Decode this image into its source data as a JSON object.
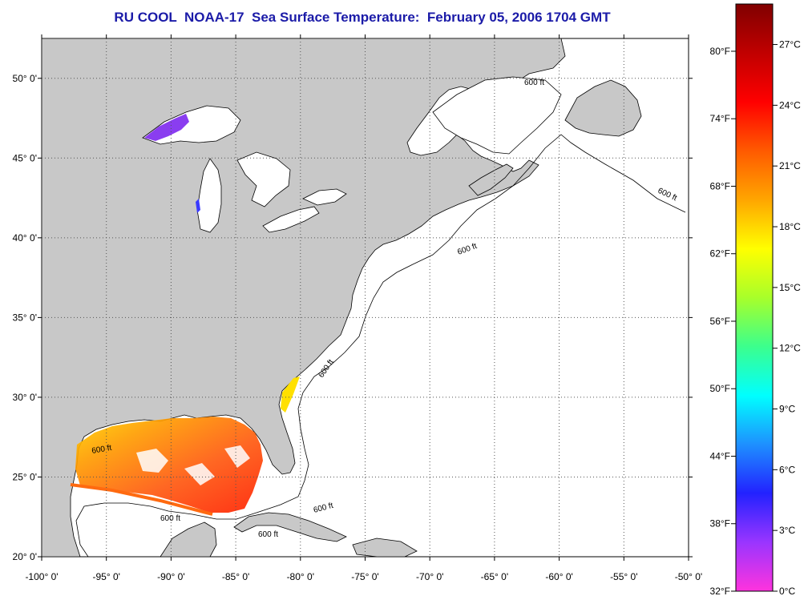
{
  "title": "RU COOL  NOAA-17  Sea Surface Temperature:  February 05, 2006 1704 GMT",
  "colors": {
    "land": "#c8c8c8",
    "ocean": "#ffffff",
    "title": "#1b1ba8",
    "coast": "#000000",
    "gridline": "#555555"
  },
  "map": {
    "lon_range": [
      -100,
      -50
    ],
    "lat_range": [
      20,
      52.5
    ],
    "lon_ticks": [
      "-100° 0'",
      "-95° 0'",
      "-90° 0'",
      "-85° 0'",
      "-80° 0'",
      "-75° 0'",
      "-70° 0'",
      "-65° 0'",
      "-60° 0'",
      "-55° 0'",
      "-50° 0'"
    ],
    "lat_ticks": [
      "20° 0'",
      "25° 0'",
      "30° 0'",
      "35° 0'",
      "40° 0'",
      "45° 0'",
      "50° 0'"
    ],
    "grid": true,
    "contour_label": "600 ft"
  },
  "colorbar": {
    "range_c": [
      0,
      29
    ],
    "fahrenheit_labels": [
      "80°F",
      "74°F",
      "68°F",
      "62°F",
      "56°F",
      "50°F",
      "44°F",
      "38°F",
      "32°F"
    ],
    "celsius_labels": [
      "27°C",
      "24°C",
      "21°C",
      "18°C",
      "15°C",
      "12°C",
      "9°C",
      "6°C",
      "3°C",
      "0°C"
    ],
    "palette": [
      "#ff33dd",
      "#9a35ff",
      "#2222ff",
      "#1e90ff",
      "#00ffff",
      "#3cff8c",
      "#a8ff2a",
      "#ffff00",
      "#ffa500",
      "#ff5a00",
      "#ff0000",
      "#c00000",
      "#800000"
    ]
  }
}
